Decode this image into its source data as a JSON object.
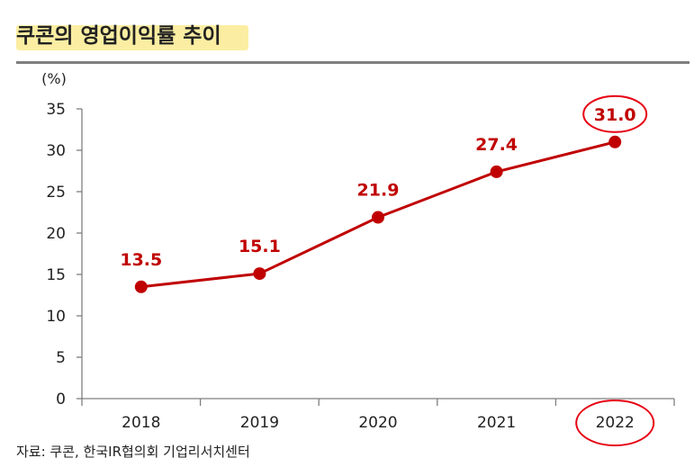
{
  "title": "쿠콘의 영업이익률 추이",
  "source": "자료: 쿠콘, 한국IR협의회 기업리서치센터",
  "colors": {
    "line": "#c00000",
    "label": "#c00000",
    "highlight": "#fbeea2",
    "axis": "#7f7f7f",
    "circle": "#e60012"
  },
  "chart_data": {
    "type": "line",
    "unit_label": "(%)",
    "categories": [
      "2018",
      "2019",
      "2020",
      "2021",
      "2022"
    ],
    "values": [
      13.5,
      15.1,
      21.9,
      27.4,
      31.0
    ],
    "value_labels": [
      "13.5",
      "15.1",
      "21.9",
      "27.4",
      "31.0"
    ],
    "ylim": [
      0,
      35
    ],
    "yticks": [
      "0",
      "5",
      "10",
      "15",
      "20",
      "25",
      "30",
      "35"
    ],
    "grid": false,
    "highlighted_category": "2022",
    "highlighted_value": "31.0"
  }
}
